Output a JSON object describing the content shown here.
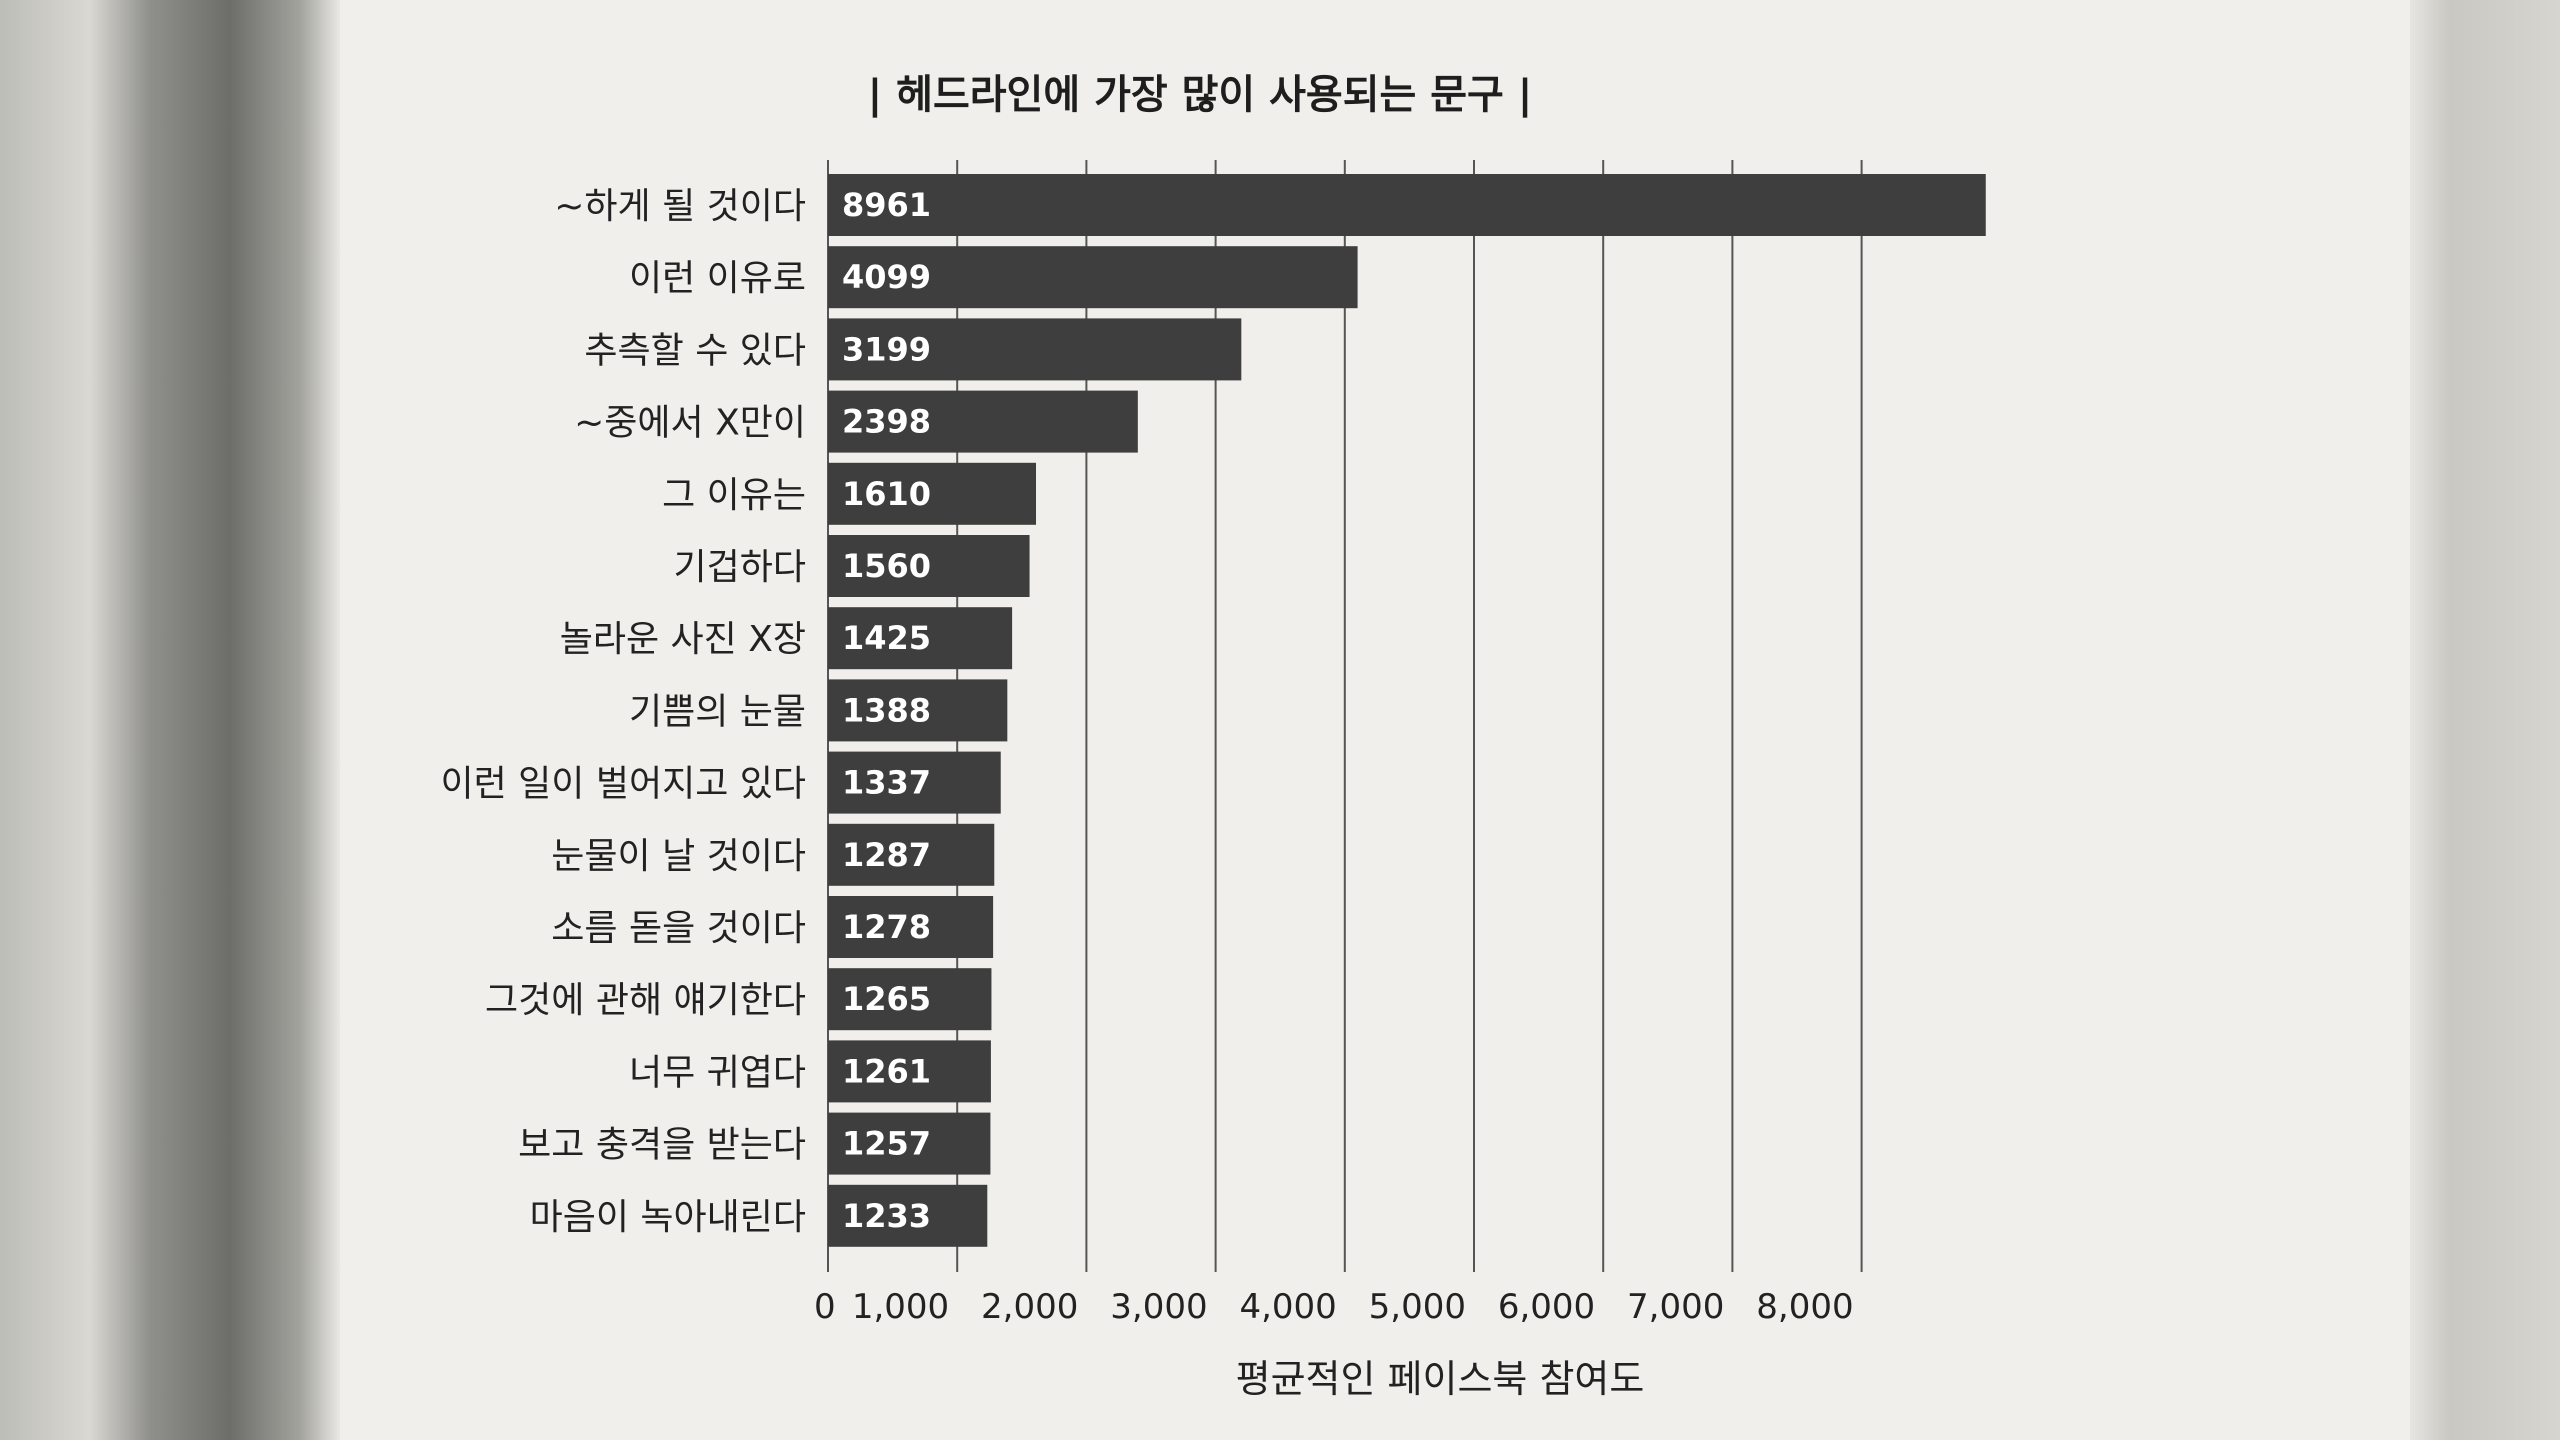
{
  "chart_data": {
    "type": "bar",
    "orientation": "horizontal",
    "title": "| 헤드라인에 가장 많이 사용되는 문구 |",
    "xlabel": "평균적인 페이스북 참여도",
    "ylabel": "",
    "xlim": [
      0,
      9000
    ],
    "grid": true,
    "xticks": [
      "0",
      "1,000",
      "2,000",
      "3,000",
      "4,000",
      "5,000",
      "6,000",
      "7,000",
      "8,000"
    ],
    "categories": [
      "~하게 될 것이다",
      "이런 이유로",
      "추측할 수 있다",
      "~중에서 X만이",
      "그 이유는",
      "기겁하다",
      "놀라운 사진 X장",
      "기쁨의 눈물",
      "이런 일이 벌어지고 있다",
      "눈물이 날 것이다",
      "소름 돋을 것이다",
      "그것에 관해 얘기한다",
      "너무 귀엽다",
      "보고 충격을 받는다",
      "마음이 녹아내린다"
    ],
    "values": [
      8961,
      4099,
      3199,
      2398,
      1610,
      1560,
      1425,
      1388,
      1337,
      1287,
      1278,
      1265,
      1261,
      1257,
      1233
    ],
    "bar_color": "#3e3e3e",
    "label_color": "#ffffff"
  }
}
